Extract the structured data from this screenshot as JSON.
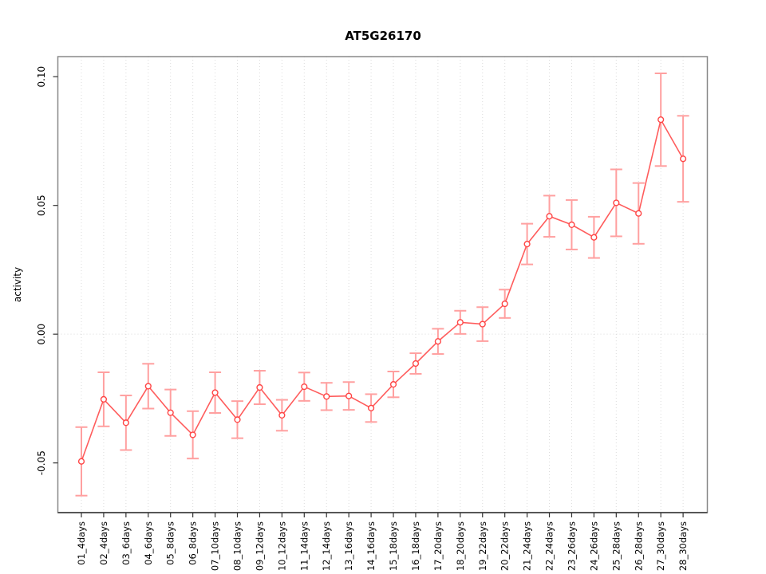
{
  "title": "AT5G26170",
  "chart_data": {
    "type": "line",
    "title": "AT5G26170",
    "xlabel": "",
    "ylabel": "activity",
    "categories": [
      "01_4days",
      "02_4days",
      "03_6days",
      "04_6days",
      "05_8days",
      "06_8days",
      "07_10days",
      "08_10days",
      "09_12days",
      "10_12days",
      "11_14days",
      "12_14days",
      "13_16days",
      "14_16days",
      "15_18days",
      "16_18days",
      "17_20days",
      "18_20days",
      "19_22days",
      "20_22days",
      "21_24days",
      "22_24days",
      "23_26days",
      "24_26days",
      "25_28days",
      "26_28days",
      "27_30days",
      "28_30days"
    ],
    "series": [
      {
        "name": "AT5G26170 activity",
        "values": [
          -0.0494,
          -0.0253,
          -0.0344,
          -0.0202,
          -0.0305,
          -0.0391,
          -0.0227,
          -0.0332,
          -0.0207,
          -0.0315,
          -0.0204,
          -0.0242,
          -0.024,
          -0.0287,
          -0.0195,
          -0.0114,
          -0.0028,
          0.0046,
          0.0039,
          0.0118,
          0.035,
          0.0458,
          0.0425,
          0.0376,
          0.051,
          0.0469,
          0.0833,
          0.0681
        ],
        "errors": [
          0.0133,
          0.0105,
          0.0106,
          0.0087,
          0.009,
          0.0092,
          0.0079,
          0.0072,
          0.0065,
          0.006,
          0.0055,
          0.0053,
          0.0054,
          0.0054,
          0.005,
          0.004,
          0.0049,
          0.0045,
          0.0066,
          0.0055,
          0.0079,
          0.008,
          0.0096,
          0.008,
          0.013,
          0.0118,
          0.018,
          0.0167
        ]
      }
    ],
    "yticks": [
      -0.05,
      0.0,
      0.05,
      0.1
    ],
    "ytick_labels": [
      "-0.05",
      "0.00",
      "0.05",
      "0.10"
    ],
    "ylim": [
      -0.0693,
      0.1078
    ],
    "grid": "dotted vertical line at every category; dotted horizontal line at y=0",
    "legend": "none",
    "marker": "open-circle",
    "colors": {
      "point": "#ff4545",
      "line": "#ff5c5c",
      "error_bar": "#ffa0a0",
      "grid": "#dcdcdc",
      "box": "#888888",
      "axis": "#333333",
      "text": "#000000"
    }
  }
}
